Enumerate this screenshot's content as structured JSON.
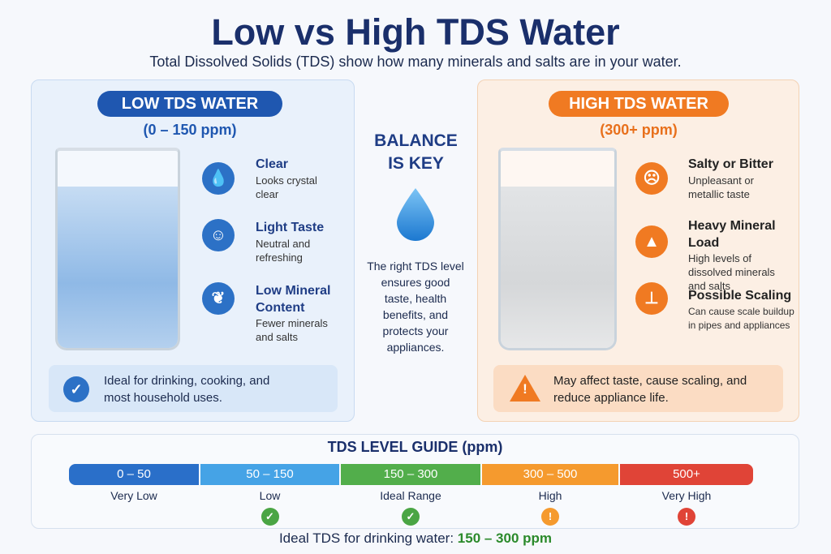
{
  "title": "Low vs High TDS Water",
  "subtitle": "Total Dissolved Solids (TDS) show how many minerals and salts are in your water.",
  "low": {
    "label": "LOW TDS WATER",
    "range": "(0 – 150 ppm)",
    "color": "#1f57b0",
    "features": [
      {
        "icon": "water-drop-icon",
        "title": "Clear",
        "desc": "Looks crystal clear"
      },
      {
        "icon": "smiley-tongue-icon",
        "title": "Light Taste",
        "desc": "Neutral and refreshing"
      },
      {
        "icon": "leaf-icon",
        "title": "Low Mineral Content",
        "desc": "Fewer minerals and salts"
      }
    ],
    "note": "Ideal for drinking, cooking, and most household uses."
  },
  "center": {
    "heading_1": "BALANCE",
    "heading_2": "IS KEY",
    "text": "The right TDS level ensures good taste, health benefits, and protects your appliances."
  },
  "high": {
    "label": "HIGH TDS WATER",
    "range": "(300+ ppm)",
    "color": "#f07a22",
    "features": [
      {
        "icon": "disgusted-face-icon",
        "title": "Salty or Bitter",
        "desc": "Unpleasant or metallic taste"
      },
      {
        "icon": "mountain-icon",
        "title": "Heavy Mineral Load",
        "desc": "High levels of dissolved minerals and salts"
      },
      {
        "icon": "pipe-icon",
        "title": "Possible Scaling",
        "desc": "Can cause scale buildup in pipes and appliances"
      }
    ],
    "note": "May affect taste, cause scaling, and reduce appliance life."
  },
  "guide": {
    "title": "TDS LEVEL GUIDE (ppm)",
    "levels": [
      {
        "range": "0 – 50",
        "label": "Very Low",
        "color": "#2a6fc9",
        "status": ""
      },
      {
        "range": "50 – 150",
        "label": "Low",
        "color": "#45a3e6",
        "status": "✓"
      },
      {
        "range": "150 – 300",
        "label": "Ideal Range",
        "color": "#52ae4b",
        "status": "✓"
      },
      {
        "range": "300 – 500",
        "label": "High",
        "color": "#f59a2e",
        "status": "!"
      },
      {
        "range": "500+",
        "label": "Very High",
        "color": "#e04437",
        "status": "!"
      }
    ],
    "footer_prefix": "Ideal TDS for drinking water:",
    "footer_value": "150 – 300 ppm"
  }
}
